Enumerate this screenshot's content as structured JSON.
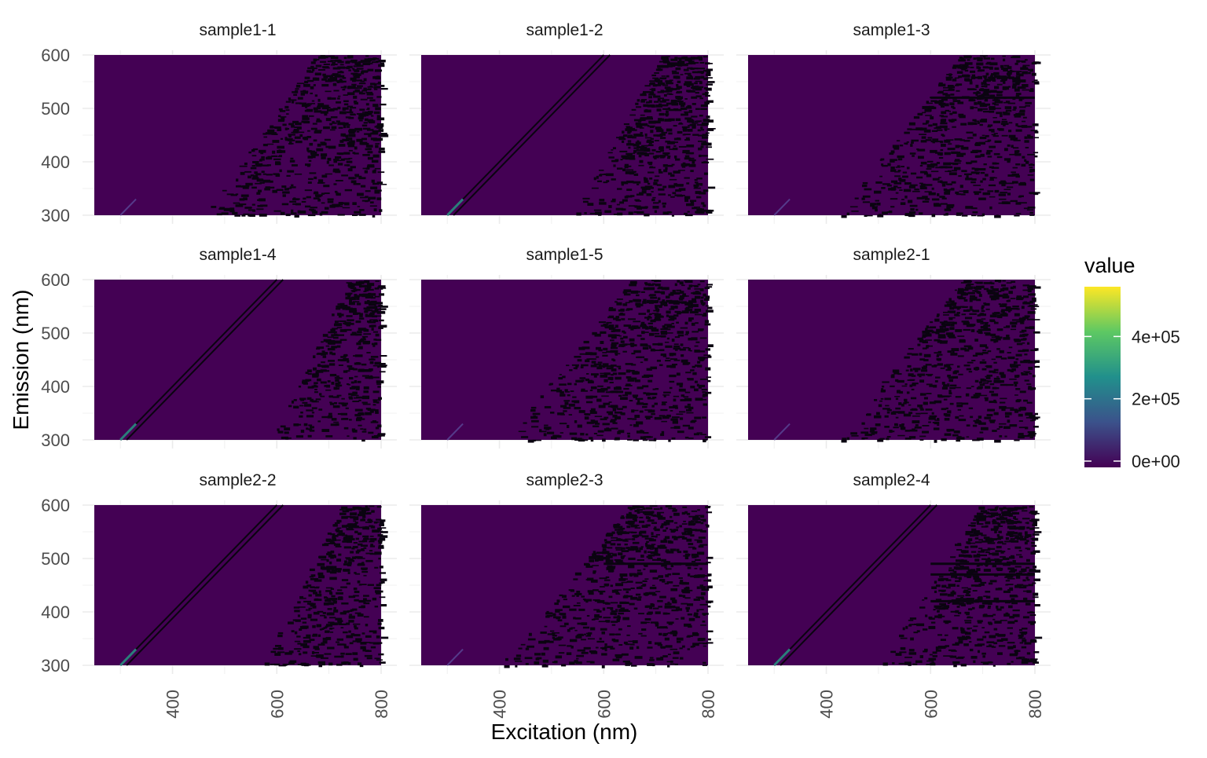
{
  "chart_data": {
    "type": "heatmap",
    "facet_layout": {
      "rows": 3,
      "cols": 3
    },
    "xlabel": "Excitation (nm)",
    "ylabel": "Emission (nm)",
    "x_ticks": [
      400,
      600,
      800
    ],
    "y_ticks": [
      300,
      400,
      500,
      600
    ],
    "xlim": [
      250,
      800
    ],
    "ylim": [
      300,
      600
    ],
    "grid": true,
    "legend": {
      "title": "value",
      "position": "right",
      "ticks": [
        {
          "value": 0,
          "label": "0e+00"
        },
        {
          "value": 200000,
          "label": "2e+05"
        },
        {
          "value": 400000,
          "label": "4e+05"
        }
      ],
      "range": [
        0,
        580000
      ],
      "colormap": "viridis",
      "colors": [
        "#440154",
        "#3b528b",
        "#21908c",
        "#5dc863",
        "#fde725"
      ]
    },
    "panels": [
      {
        "title": "sample1-1",
        "scatter_line": false,
        "noise_start_ex": 520,
        "noise_density": 0.6,
        "streaks_em": []
      },
      {
        "title": "sample1-2",
        "scatter_line": true,
        "noise_start_ex": 600,
        "noise_density": 0.55,
        "streaks_em": []
      },
      {
        "title": "sample1-3",
        "scatter_line": false,
        "noise_start_ex": 480,
        "noise_density": 0.65,
        "streaks_em": [
          520
        ]
      },
      {
        "title": "sample1-4",
        "scatter_line": true,
        "noise_start_ex": 650,
        "noise_density": 0.4,
        "streaks_em": []
      },
      {
        "title": "sample1-5",
        "scatter_line": false,
        "noise_start_ex": 470,
        "noise_density": 0.65,
        "streaks_em": []
      },
      {
        "title": "sample2-1",
        "scatter_line": false,
        "noise_start_ex": 480,
        "noise_density": 0.65,
        "streaks_em": []
      },
      {
        "title": "sample2-2",
        "scatter_line": true,
        "noise_start_ex": 630,
        "noise_density": 0.45,
        "streaks_em": []
      },
      {
        "title": "sample2-3",
        "scatter_line": false,
        "noise_start_ex": 460,
        "noise_density": 0.7,
        "streaks_em": [
          490
        ]
      },
      {
        "title": "sample2-4",
        "scatter_line": true,
        "noise_start_ex": 560,
        "noise_density": 0.55,
        "streaks_em": [
          490,
          470,
          420
        ]
      }
    ]
  }
}
